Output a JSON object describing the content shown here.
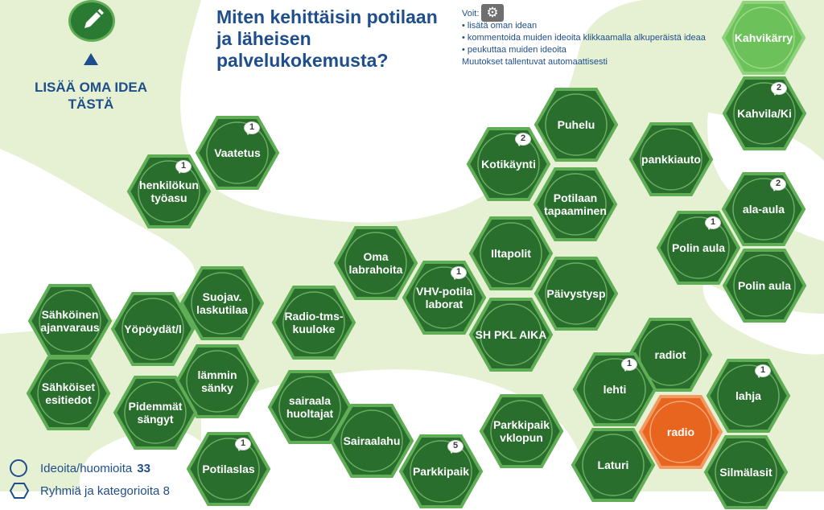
{
  "header": {
    "title": "Miten kehittäisin potilaan ja läheisen palvelukokemusta?",
    "instructions_heading": "Voit:",
    "instructions": [
      "lisätä oman idean",
      "kommentoida muiden ideoita klikkaamalla alkuperäistä ideaa",
      "peukuttaa muiden ideoita"
    ],
    "autosave_note": "Muutokset tallentuvat automaattisesti",
    "settings_icon": "gear-icon"
  },
  "add_idea": {
    "icon": "pencil-icon",
    "label": "LISÄÄ OMA IDEA TÄSTÄ"
  },
  "legend": {
    "ideas_label": "Ideoita/huomioita",
    "ideas_count": "33",
    "second_label": "Ryhmiä ja kategorioita 8"
  },
  "colors": {
    "primary": "#2a6e2e",
    "border": "#5fae56",
    "category": "#6cc15a",
    "selected": "#e8651f",
    "title": "#1f4e8c",
    "background_band": "#e6f0d2"
  },
  "ideas": [
    {
      "label": "Kahvikärry",
      "kind": "category"
    },
    {
      "label": "Kahvila/Ki",
      "comments": "2"
    },
    {
      "label": "Vaatetus",
      "comments": "1"
    },
    {
      "label": "henkilökun työasu",
      "comments": "1"
    },
    {
      "label": "Puhelu"
    },
    {
      "label": "Kotikäynti",
      "comments": "2"
    },
    {
      "label": "Potilaan tapaaminen"
    },
    {
      "label": "pankkiauto"
    },
    {
      "label": "ala-aula",
      "comments": "2"
    },
    {
      "label": "Polin aula",
      "comments": "1"
    },
    {
      "label": "Polin aula"
    },
    {
      "label": "Oma labrahoita"
    },
    {
      "label": "Iltapolit"
    },
    {
      "label": "VHV-potila laborat",
      "comments": "1"
    },
    {
      "label": "Päivystysp"
    },
    {
      "label": "SH PKL AIKA"
    },
    {
      "label": "Suojav. laskutilaa"
    },
    {
      "label": "Radio-tms-kuuloke"
    },
    {
      "label": "Sähköinen ajanvaraus"
    },
    {
      "label": "Yöpöydät/l"
    },
    {
      "label": "lämmin sänky"
    },
    {
      "label": "Sähköiset esitiedot"
    },
    {
      "label": "Pidemmät sängyt"
    },
    {
      "label": "sairaala huoltajat"
    },
    {
      "label": "Sairaalahu"
    },
    {
      "label": "Parkkipaik vklopun"
    },
    {
      "label": "Parkkipaik",
      "comments": "5"
    },
    {
      "label": "radiot"
    },
    {
      "label": "lehti",
      "comments": "1"
    },
    {
      "label": "lahja",
      "comments": "1"
    },
    {
      "label": "radio",
      "kind": "selected"
    },
    {
      "label": "Laturi"
    },
    {
      "label": "Silmälasit"
    },
    {
      "label": "Potilaslas",
      "comments": "1"
    }
  ]
}
